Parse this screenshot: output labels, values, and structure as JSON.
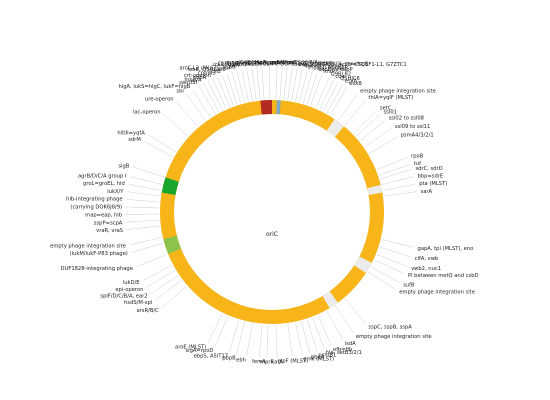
{
  "colors": {
    "ring": "#f7b51a",
    "red": "#b22a22",
    "blue": "#7fa9c9",
    "green_dark": "#1aa52c",
    "green_light": "#8cc34a",
    "gap": "#ececec",
    "spoke": "#cfcfcf",
    "text": "#222222"
  },
  "center_label": "oriC",
  "labels": [
    {
      "text": "mpA, rpmH",
      "deg": -1
    },
    {
      "text": "dnaA, dnaN, yaaA, recF, gyrB/A",
      "deg": 2
    },
    {
      "text": "orfX",
      "deg": 4
    },
    {
      "text": "mnmG=gidA, mnmE=trmE",
      "deg": -4
    },
    {
      "text": "cna",
      "deg": -6
    },
    {
      "text": "SCC integration site/SCC element",
      "deg": 6
    },
    {
      "text": "C1PH96, lrpC, Q6GG44, DUF831-GI, cstR/A/B-GI, sqr=fccB",
      "deg": 8
    },
    {
      "text": "dusC, Q6GKX6, ycjY=C5Q1F1-L1, G7ZTC1",
      "deg": 10
    },
    {
      "text": "hisB",
      "deg": -8
    },
    {
      "text": "icaR/A/D/B/C",
      "deg": -10
    },
    {
      "text": "ywrF",
      "deg": -12
    },
    {
      "text": "spa",
      "deg": 12
    },
    {
      "text": "isaB",
      "deg": -14
    },
    {
      "text": "phnE2, phnE1",
      "deg": 14
    },
    {
      "text": "arcC-L2 (MLST), aur",
      "deg": -16
    },
    {
      "text": "capD to capB",
      "deg": 16
    },
    {
      "text": "feoB, Q5HCW6",
      "deg": -18
    },
    {
      "text": "clfB",
      "deg": -20
    },
    {
      "text": "capD to capP",
      "deg": 18
    },
    {
      "text": "cobW3",
      "deg": -22
    },
    {
      "text": "lmrP",
      "deg": 20
    },
    {
      "text": "crt-operon",
      "deg": -24
    },
    {
      "text": "Q9RL82",
      "deg": 23
    },
    {
      "text": "copA",
      "deg": -26
    },
    {
      "text": "coa",
      "deg": 25
    },
    {
      "text": "fnbB/A",
      "deg": -28
    },
    {
      "text": "Q5HJC6",
      "deg": 27
    },
    {
      "text": "sauUSI",
      "deg": -30
    },
    {
      "text": "esxA",
      "deg": 29
    },
    {
      "text": "hlgA, lukS=hlgC, lukF=hlgB",
      "deg": -33
    },
    {
      "text": "esxB",
      "deg": 31
    },
    {
      "text": "sbi",
      "deg": -36
    },
    {
      "text": "empty phage integration site",
      "deg": 36
    },
    {
      "text": "thlA=yqlF (MLST)",
      "deg": 40
    },
    {
      "text": "ure-operon",
      "deg": -41
    },
    {
      "text": "setC",
      "deg": 46
    },
    {
      "text": "ssl01",
      "deg": 48
    },
    {
      "text": "lac-operon",
      "deg": -48
    },
    {
      "text": "ssl02 to ssl08",
      "deg": 51
    },
    {
      "text": "ssl09 to ssl11",
      "deg": 55
    },
    {
      "text": "psmA4/3/2/1",
      "deg": 59
    },
    {
      "text": "hltIII=yqfA",
      "deg": -58
    },
    {
      "text": "sdrM",
      "deg": -61
    },
    {
      "text": "rpoB",
      "deg": 68
    },
    {
      "text": "tuf",
      "deg": 71
    },
    {
      "text": "sdrC, sdrD",
      "deg": 73
    },
    {
      "text": "bbp=sdrE",
      "deg": 76
    },
    {
      "text": "sigB",
      "deg": -72
    },
    {
      "text": "pta (MLST)",
      "deg": 79
    },
    {
      "text": "sarA",
      "deg": 82
    },
    {
      "text": "agrB/D/C/A group I",
      "deg": -76
    },
    {
      "text": "groL=groEL, hld",
      "deg": -79
    },
    {
      "text": "lukX/Y",
      "deg": -82
    },
    {
      "text": "hlb-integrating phage",
      "deg": -85
    },
    {
      "text": "(carrying DOK6J8/9)",
      "deg": -88
    },
    {
      "text": "map=eap, hlb",
      "deg": -91
    },
    {
      "text": "sspP=scpA",
      "deg": -94
    },
    {
      "text": "vraR, vraS",
      "deg": -97
    },
    {
      "text": "gapA, tpi (MLST), eno",
      "deg": 104
    },
    {
      "text": "clfA, vwb",
      "deg": 108
    },
    {
      "text": "vwb2, nuc1",
      "deg": 112
    },
    {
      "text": "empty phage integration site",
      "deg": -103
    },
    {
      "text": "Pl between metQ and csbD",
      "deg": 115
    },
    {
      "text": "(lukM/lukF-P83 phage)",
      "deg": -106
    },
    {
      "text": "sufB",
      "deg": 119
    },
    {
      "text": "empty phage integration site",
      "deg": 122
    },
    {
      "text": "DUF1828-integrating phage",
      "deg": -112
    },
    {
      "text": "lukD/E",
      "deg": -118
    },
    {
      "text": "epi-operon",
      "deg": -121
    },
    {
      "text": "splF/D/C/B/A, ear2",
      "deg": -124
    },
    {
      "text": "hsdS/M-spl",
      "deg": -127
    },
    {
      "text": "arsR/B/C",
      "deg": -131
    },
    {
      "text": "sspC, sspB, sspA",
      "deg": 140
    },
    {
      "text": "empty phage integration site",
      "deg": 146
    },
    {
      "text": "isdA",
      "deg": 151
    },
    {
      "text": "aroE (MLST)",
      "deg": -154
    },
    {
      "text": "sigA=rpoD",
      "deg": -157
    },
    {
      "text": "efb=fib",
      "deg": 156
    },
    {
      "text": "hla, setB3/2/1",
      "deg": 159
    },
    {
      "text": "psmB1",
      "deg": 162
    },
    {
      "text": "ebpS, A5IT17",
      "deg": -163
    },
    {
      "text": "pbpA",
      "deg": 165
    },
    {
      "text": "pbpB",
      "deg": -166
    },
    {
      "text": "gmk (MLST)",
      "deg": 168
    },
    {
      "text": "glpF (MLST)",
      "deg": 172
    },
    {
      "text": "ebh",
      "deg": -170
    },
    {
      "text": "katA",
      "deg": 178
    },
    {
      "text": "femA",
      "deg": -175
    },
    {
      "text": "mprF",
      "deg": -178
    }
  ]
}
